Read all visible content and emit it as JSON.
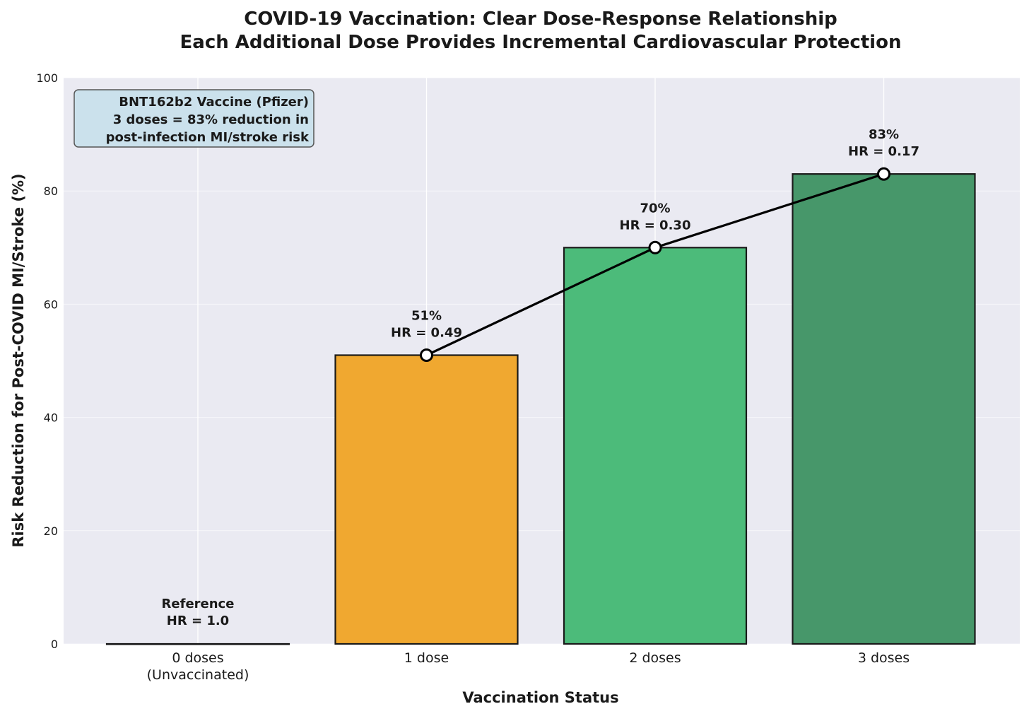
{
  "chart_data": {
    "type": "bar",
    "title": [
      "COVID-19 Vaccination: Clear Dose-Response Relationship",
      "Each Additional Dose Provides Incremental Cardiovascular Protection"
    ],
    "xlabel": "Vaccination Status",
    "ylabel": "Risk Reduction for Post-COVID MI/Stroke (%)",
    "ylim": [
      0,
      100
    ],
    "yticks": [
      0,
      20,
      40,
      60,
      80,
      100
    ],
    "grid": true,
    "categories": [
      [
        "0 doses",
        "(Unvaccinated)"
      ],
      [
        "1 dose"
      ],
      [
        "2 doses"
      ],
      [
        "3 doses"
      ]
    ],
    "values": [
      0,
      51,
      70,
      83
    ],
    "colors": [
      "#cccccc",
      "#f0a830",
      "#4cbb7a",
      "#47976a"
    ],
    "bar_labels": [
      [
        "Reference",
        "HR = 1.0"
      ],
      [
        "51%",
        "HR = 0.49"
      ],
      [
        "70%",
        "HR = 0.30"
      ],
      [
        "83%",
        "HR = 0.17"
      ]
    ],
    "line_series": {
      "name": "trend",
      "x_categories": [
        1,
        2,
        3
      ],
      "values": [
        51,
        70,
        83
      ]
    },
    "annotation": [
      "BNT162b2 Vaccine (Pfizer)",
      "3 doses = 83% reduction in",
      "post-infection MI/stroke risk"
    ]
  }
}
